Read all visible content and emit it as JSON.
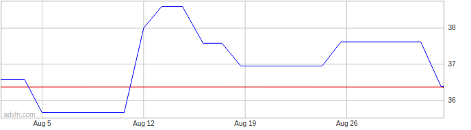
{
  "chart_data": {
    "type": "line",
    "x": [
      2.17,
      3.8,
      5,
      10.66,
      12,
      13.25,
      14.67,
      16.1,
      17.4,
      18.7,
      24.3,
      25.6,
      31.1,
      32.5,
      32.7
    ],
    "values": [
      36.57,
      36.57,
      35.66,
      35.66,
      38.0,
      38.6,
      38.6,
      37.58,
      37.58,
      36.95,
      36.95,
      37.62,
      37.62,
      36.38,
      36.38
    ],
    "color": "#0000ff",
    "xlim": [
      2.17,
      32.7
    ],
    "xticks": [
      {
        "value": 5,
        "label": "Aug 5"
      },
      {
        "value": 12,
        "label": "Aug 12"
      },
      {
        "value": 19,
        "label": "Aug 19"
      },
      {
        "value": 26,
        "label": "Aug 26"
      }
    ],
    "ylim": [
      35.51,
      38.75
    ],
    "yticks": [
      36,
      37,
      38
    ],
    "grid": true,
    "reference_line": {
      "value": 36.37,
      "color": "#e00000"
    },
    "watermark": "advfn.com"
  }
}
